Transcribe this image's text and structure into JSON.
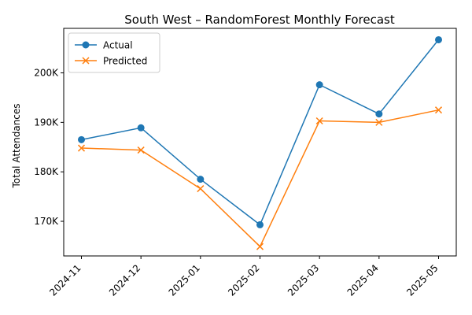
{
  "chart_data": {
    "type": "line",
    "title": "South West – RandomForest Monthly Forecast",
    "xlabel": "",
    "ylabel": "Total Attendances",
    "categories": [
      "2024-11",
      "2024-12",
      "2025-01",
      "2025-02",
      "2025-03",
      "2025-04",
      "2025-05"
    ],
    "ylim": [
      163000,
      209000
    ],
    "yticks": [
      170000,
      180000,
      190000,
      200000
    ],
    "ytick_labels": [
      "170K",
      "180K",
      "190K",
      "200K"
    ],
    "grid": false,
    "legend_position": "top-left",
    "series": [
      {
        "name": "Actual",
        "color": "#1f77b4",
        "marker": "circle",
        "values": [
          186500,
          188900,
          178500,
          169300,
          197600,
          191700,
          206700
        ]
      },
      {
        "name": "Predicted",
        "color": "#ff7f0e",
        "marker": "x",
        "values": [
          184800,
          184400,
          176600,
          164900,
          190300,
          190000,
          192500
        ]
      }
    ]
  }
}
